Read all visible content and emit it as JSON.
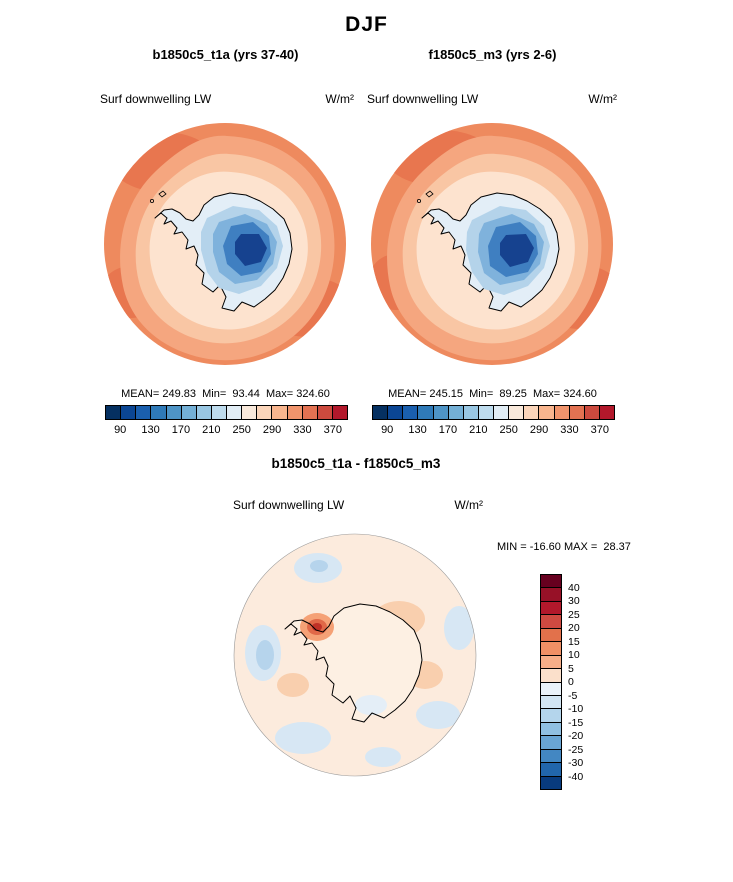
{
  "title": "DJF",
  "panels": {
    "left": {
      "header": "b1850c5_t1a (yrs 37-40)",
      "field_label": "Surf downwelling LW",
      "units": "W/m²",
      "stats": "MEAN= 249.83  Min=  93.44  Max= 324.60"
    },
    "right": {
      "header": "f1850c5_m3 (yrs 2-6)",
      "field_label": "Surf downwelling LW",
      "units": "W/m²",
      "stats": "MEAN= 245.15  Min=  89.25  Max= 324.60"
    },
    "diff": {
      "header": "b1850c5_t1a - f1850c5_m3",
      "field_label": "Surf downwelling LW",
      "units": "W/m²",
      "minmax": "MIN = -16.60 MAX =  28.37"
    }
  },
  "colorbar_abs": {
    "ticks": [
      "90",
      "130",
      "170",
      "210",
      "250",
      "290",
      "330",
      "370"
    ],
    "colors": [
      "#053061",
      "#0b4694",
      "#1a5fae",
      "#2f7ab8",
      "#4e94c6",
      "#74b0d6",
      "#99c7e3",
      "#bedcee",
      "#e1edf5",
      "#f9e9db",
      "#fbd5ba",
      "#f8b58e",
      "#f0946c",
      "#e37252",
      "#cc4a3e",
      "#b2182b"
    ]
  },
  "colorbar_diff": {
    "ticks": [
      "40",
      "30",
      "25",
      "20",
      "15",
      "10",
      "5",
      "0",
      "-5",
      "-10",
      "-15",
      "-20",
      "-25",
      "-30",
      "-40"
    ],
    "colors": [
      "#67001f",
      "#971127",
      "#b2182b",
      "#cf4a41",
      "#e2714b",
      "#f09065",
      "#f6ae88",
      "#fbe0cb",
      "#eaf2f9",
      "#d2e5f3",
      "#b4d5ec",
      "#90c0e2",
      "#69a5d4",
      "#4387c2",
      "#2166ac",
      "#083b7e"
    ]
  },
  "chart_data": [
    {
      "type": "heatmap",
      "projection": "polar_stereographic_south",
      "season": "DJF",
      "title": "b1850c5_t1a (yrs 37-40)",
      "field": "Surf downwelling LW",
      "units": "W/m²",
      "stats": {
        "mean": 249.83,
        "min": 93.44,
        "max": 324.6
      },
      "colorbar_ticks": [
        90,
        130,
        170,
        210,
        250,
        290,
        330,
        370
      ],
      "legend_position": "bottom"
    },
    {
      "type": "heatmap",
      "projection": "polar_stereographic_south",
      "season": "DJF",
      "title": "f1850c5_m3 (yrs 2-6)",
      "field": "Surf downwelling LW",
      "units": "W/m²",
      "stats": {
        "mean": 245.15,
        "min": 89.25,
        "max": 324.6
      },
      "colorbar_ticks": [
        90,
        130,
        170,
        210,
        250,
        290,
        330,
        370
      ],
      "legend_position": "bottom"
    },
    {
      "type": "heatmap",
      "projection": "polar_stereographic_south",
      "season": "DJF",
      "title": "b1850c5_t1a - f1850c5_m3",
      "field": "Surf downwelling LW",
      "units": "W/m²",
      "stats": {
        "min": -16.6,
        "max": 28.37
      },
      "colorbar_ticks": [
        40,
        30,
        25,
        20,
        15,
        10,
        5,
        0,
        -5,
        -10,
        -15,
        -20,
        -25,
        -30,
        -40
      ],
      "legend_position": "right"
    }
  ]
}
